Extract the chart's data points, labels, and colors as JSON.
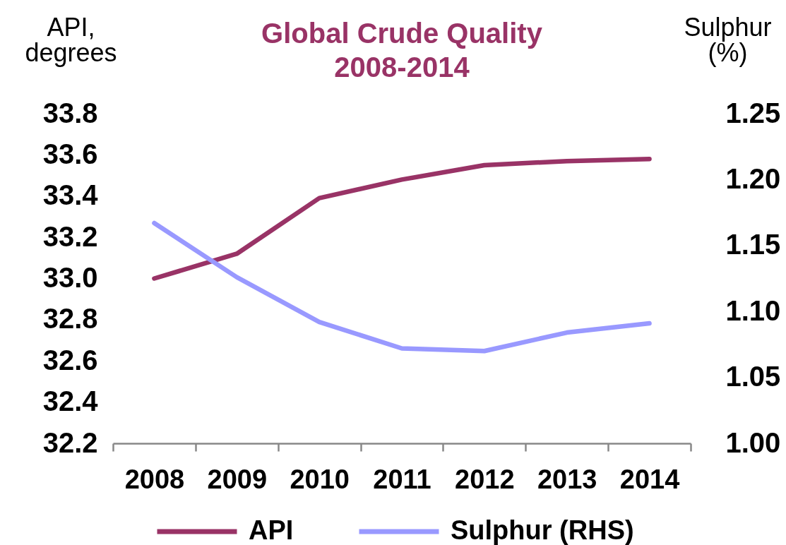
{
  "chart_data": {
    "type": "line",
    "title": "Global Crude Quality 2008-2014",
    "ylabel": "API, degrees",
    "y2label": "Sulphur (%)",
    "categories": [
      "2008",
      "2009",
      "2010",
      "2011",
      "2012",
      "2013",
      "2014"
    ],
    "series": [
      {
        "name": "API",
        "color": "#993366",
        "values": [
          33.0,
          33.12,
          33.39,
          33.48,
          33.55,
          33.57,
          33.58
        ]
      },
      {
        "name": "Sulphur (RHS)",
        "color": "#9999ff",
        "axis": "y2",
        "values": [
          1.167,
          1.126,
          1.092,
          1.072,
          1.07,
          1.084,
          1.091
        ]
      }
    ],
    "ylim": [
      32.2,
      33.8
    ],
    "yticks": [
      32.2,
      32.4,
      32.6,
      32.8,
      {
        "value": 33,
        "label": "33.0"
      },
      33.2,
      33.4,
      33.6,
      33.8
    ],
    "y2lim": [
      1.0,
      1.25
    ],
    "y2ticks": [
      {
        "value": 1,
        "label": "1.00"
      },
      1.05,
      {
        "value": 1.1,
        "label": "1.10"
      },
      1.15,
      {
        "value": 1.2,
        "label": "1.20"
      },
      1.25
    ],
    "grid": false,
    "legend": "bottom"
  }
}
